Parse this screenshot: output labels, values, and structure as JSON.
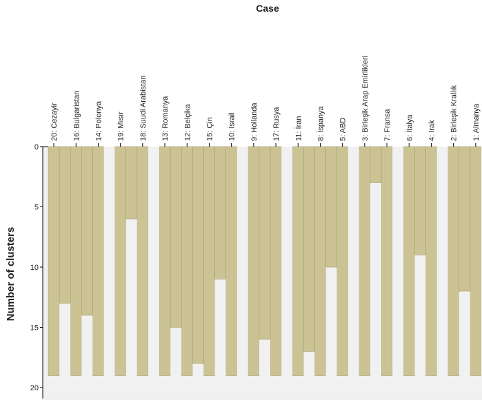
{
  "chart_data": {
    "type": "icicle",
    "title": "Case",
    "xlabel": "",
    "ylabel": "Number of clusters",
    "ylim": [
      0,
      20
    ],
    "yticks": [
      0,
      5,
      10,
      15,
      20
    ],
    "cases": [
      "20: Cezayir",
      "16: Bulgaristan",
      "14: Polonya",
      "19: Mısır",
      "18: Suudi Arabistan",
      "13: Romanya",
      "12: Belçika",
      "15: Çin",
      "10: İsrail",
      "9: Hollanda",
      "17: Rusya",
      "11: İran",
      "8: İspanya",
      "5: ABD",
      "3: Birleşik Arap Emirlikleri",
      "7: Fransa",
      "6: İtalya",
      "4: Irak",
      "2: Birleşik Krallık",
      "1: Almanya"
    ],
    "join_levels": [
      13,
      14,
      0,
      6,
      0,
      15,
      18,
      11,
      0,
      16,
      0,
      17,
      10,
      0,
      3,
      0,
      9,
      0,
      12,
      0,
      5,
      0,
      0,
      0,
      2,
      0,
      7,
      0,
      0,
      4,
      0,
      8,
      0,
      0,
      1,
      0,
      0,
      0,
      0
    ],
    "grid": false,
    "colors": {
      "bar": "#ccc395",
      "bar_edge": "#a39c72",
      "gap": "#f1f1f1",
      "axis": "#000000"
    }
  }
}
